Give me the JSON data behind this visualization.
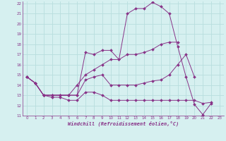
{
  "xlabel": "Windchill (Refroidissement éolien,°C)",
  "background_color": "#d6f0f0",
  "grid_color": "#b8dede",
  "line_color": "#883388",
  "xlim": [
    -0.5,
    23.5
  ],
  "ylim": [
    11,
    22.2
  ],
  "xticks": [
    0,
    1,
    2,
    3,
    4,
    5,
    6,
    7,
    8,
    9,
    10,
    11,
    12,
    13,
    14,
    15,
    16,
    17,
    18,
    19,
    20,
    21,
    22,
    23
  ],
  "yticks": [
    11,
    12,
    13,
    14,
    15,
    16,
    17,
    18,
    19,
    20,
    21,
    22
  ],
  "x_all": [
    0,
    1,
    2,
    3,
    4,
    5,
    6,
    7,
    8,
    9,
    10,
    11,
    12,
    13,
    14,
    15,
    16,
    17,
    18,
    19,
    20,
    21,
    22,
    23
  ],
  "lines": [
    [
      14.8,
      14.2,
      13.0,
      13.0,
      13.0,
      13.0,
      13.0,
      17.2,
      17.0,
      17.4,
      17.4,
      16.5,
      21.0,
      21.5,
      21.5,
      22.1,
      21.7,
      21.0,
      17.8,
      14.8,
      12.1,
      11.1,
      12.2,
      null
    ],
    [
      14.8,
      14.2,
      13.0,
      13.0,
      13.0,
      13.0,
      14.0,
      15.0,
      15.5,
      16.0,
      16.5,
      16.5,
      17.0,
      17.0,
      17.2,
      17.5,
      18.0,
      18.2,
      18.2,
      null,
      null,
      null,
      null,
      null
    ],
    [
      14.8,
      14.2,
      13.0,
      13.0,
      13.0,
      13.0,
      13.0,
      14.5,
      14.8,
      15.0,
      14.0,
      14.0,
      14.0,
      14.0,
      14.2,
      14.4,
      14.5,
      15.0,
      16.0,
      17.0,
      14.8,
      null,
      null,
      null
    ],
    [
      14.8,
      14.2,
      13.0,
      12.8,
      12.8,
      12.5,
      12.5,
      13.3,
      13.3,
      13.0,
      12.5,
      12.5,
      12.5,
      12.5,
      12.5,
      12.5,
      12.5,
      12.5,
      12.5,
      12.5,
      12.5,
      12.2,
      12.3,
      null
    ]
  ]
}
